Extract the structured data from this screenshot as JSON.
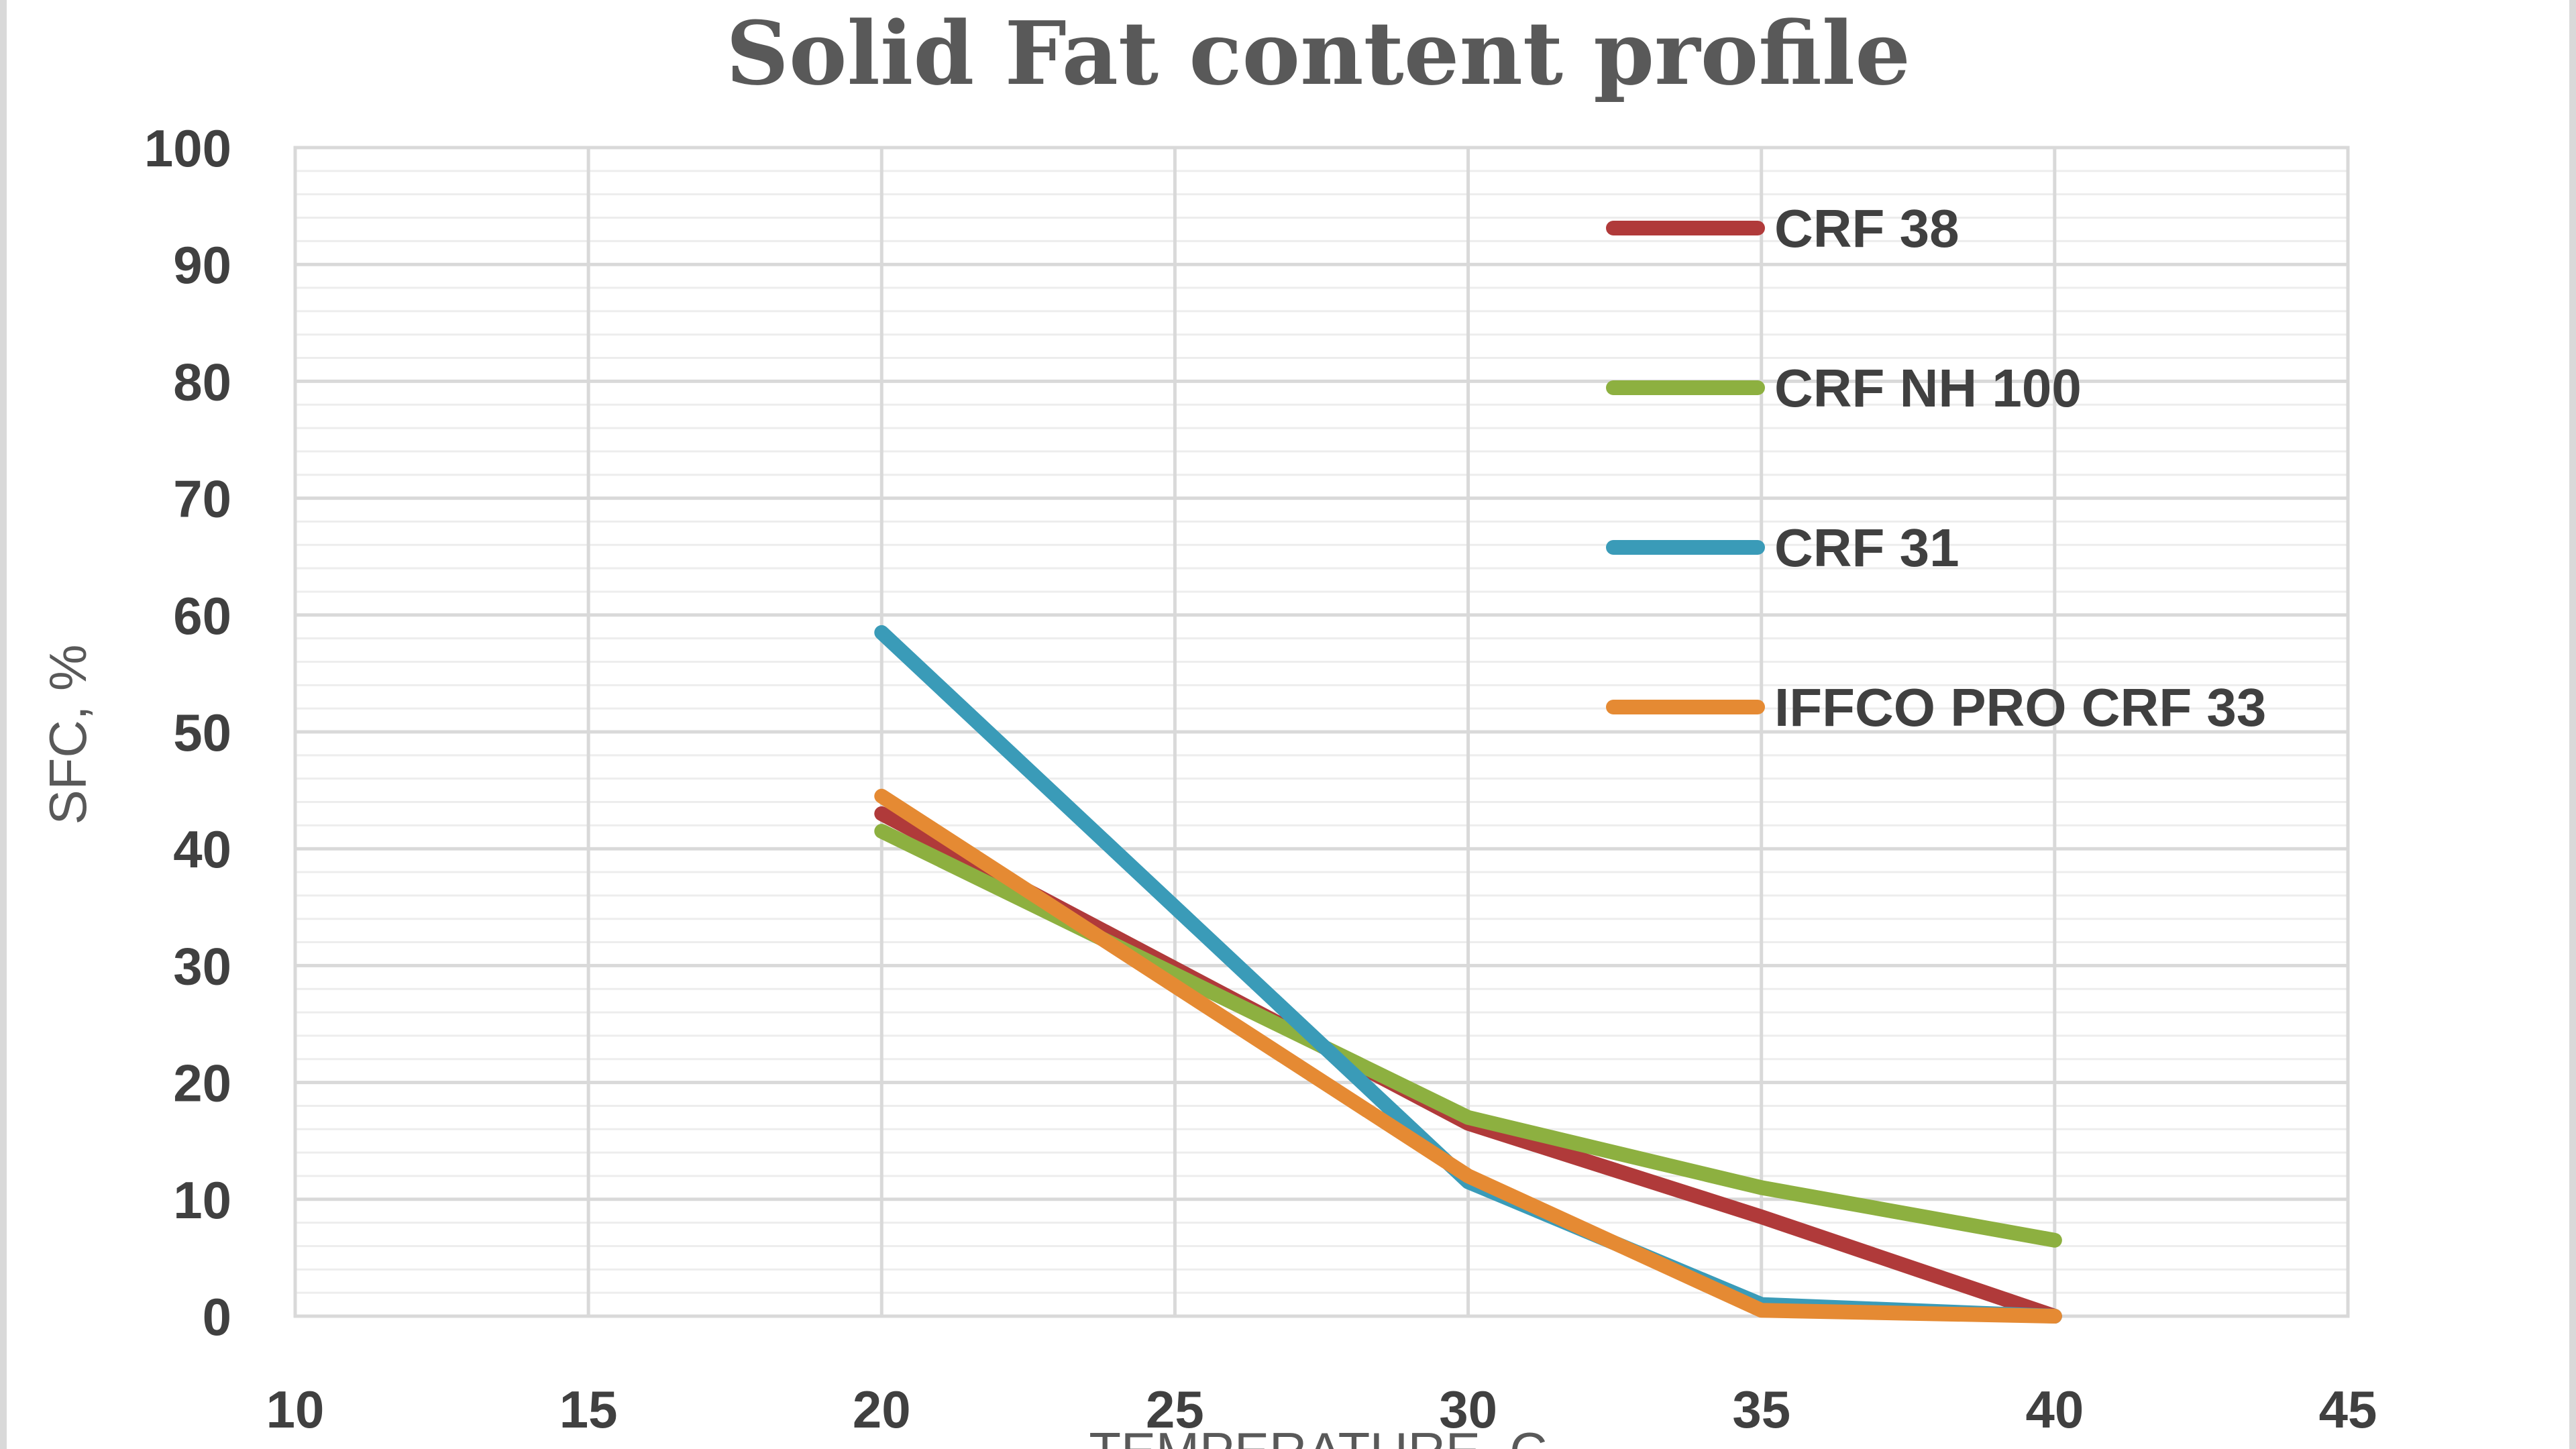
{
  "chart_data": {
    "type": "line",
    "title": "Solid Fat content profile",
    "xlabel": "TEMPERATURE, C",
    "ylabel": "SFC, %",
    "xlim": [
      10,
      45
    ],
    "ylim": [
      0,
      100
    ],
    "x_ticks": [
      "10",
      "15",
      "20",
      "25",
      "30",
      "35",
      "40",
      "45"
    ],
    "y_ticks": [
      "0",
      "10",
      "20",
      "30",
      "40",
      "50",
      "60",
      "70",
      "80",
      "90",
      "100"
    ],
    "grid": true,
    "legend_position": "top-right",
    "x": [
      20,
      30,
      35,
      40
    ],
    "series": [
      {
        "name": "CRF 38",
        "color": "#b03a3a",
        "values": [
          43,
          16.5,
          8.5,
          0
        ]
      },
      {
        "name": "CRF NH 100",
        "color": "#8db040",
        "values": [
          41.5,
          17,
          11,
          6.5
        ]
      },
      {
        "name": "CRF 31",
        "color": "#3a9bb8",
        "values": [
          58.5,
          11.5,
          1,
          0
        ]
      },
      {
        "name": "IFFCO PRO CRF 33",
        "color": "#e58a33",
        "values": [
          44.5,
          12,
          0.5,
          0
        ]
      }
    ]
  }
}
